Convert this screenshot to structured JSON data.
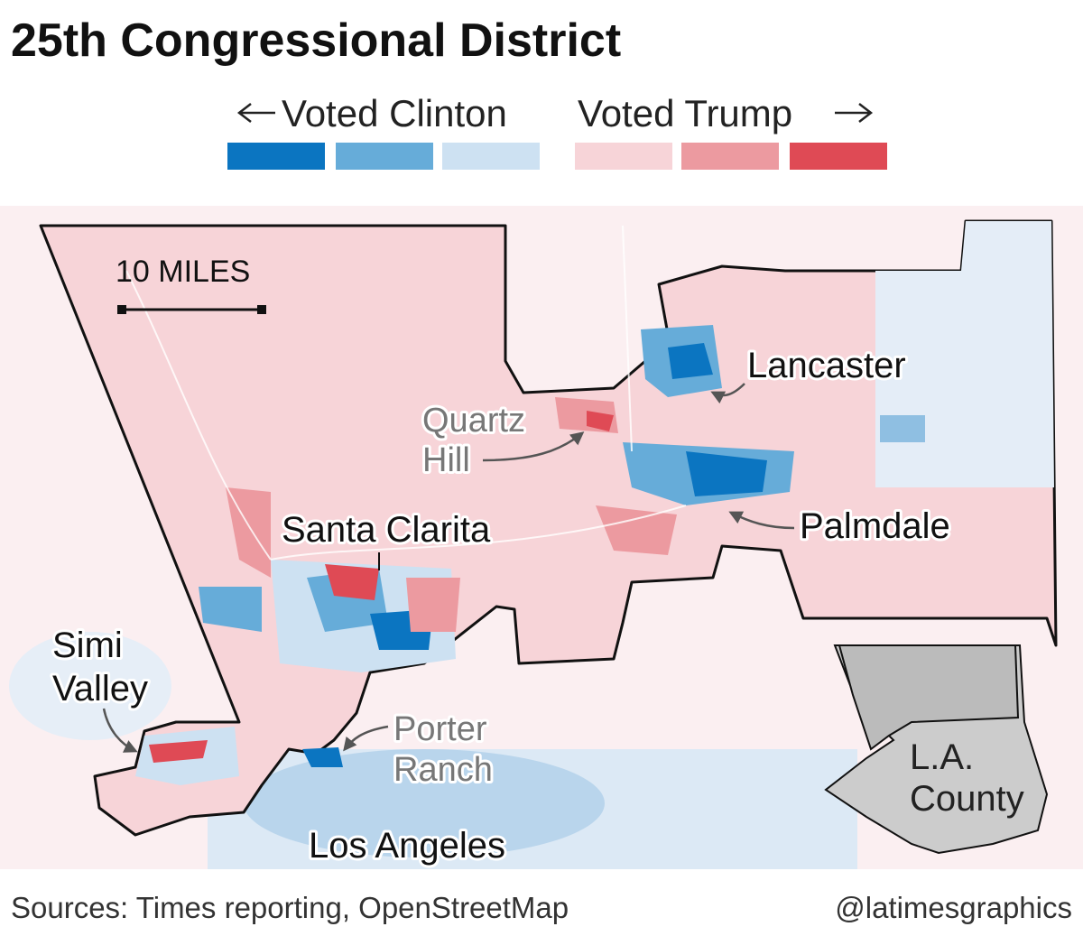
{
  "title": "25th Congressional District",
  "legend": {
    "left_label": "Voted Clinton",
    "right_label": "Voted Trump",
    "colors": [
      "#0b75c1",
      "#66acd9",
      "#cde1f2",
      "#f7d4d8",
      "#ec9aa0",
      "#df4a55"
    ]
  },
  "map": {
    "scale_label": "10 MILES",
    "places": {
      "lancaster": "Lancaster",
      "quartz_hill": [
        "Quartz",
        "Hill"
      ],
      "palmdale": "Palmdale",
      "santa_clarita": "Santa Clarita",
      "simi_valley": [
        "Simi",
        "Valley"
      ],
      "porter_ranch": [
        "Porter",
        "Ranch"
      ],
      "los_angeles": "Los Angeles"
    },
    "inset_label": [
      "L.A.",
      "County"
    ]
  },
  "footer": {
    "source": "Sources: Times reporting, OpenStreetMap",
    "credit": "@latimesgraphics"
  }
}
